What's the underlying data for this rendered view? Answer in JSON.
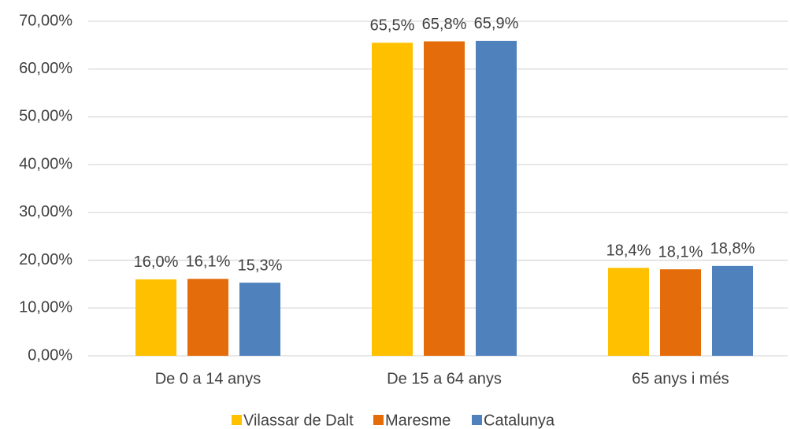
{
  "chart_data": {
    "type": "bar",
    "categories": [
      "De 0 a 14 anys",
      "De 15 a 64 anys",
      "65 anys i més"
    ],
    "series": [
      {
        "name": "Vilassar de Dalt",
        "color": "#FFC000",
        "values": [
          16.0,
          65.5,
          18.4
        ],
        "value_labels": [
          "16,0%",
          "65,5%",
          "18,4%"
        ]
      },
      {
        "name": "Maresme",
        "color": "#E46C0A",
        "values": [
          16.1,
          65.8,
          18.1
        ],
        "value_labels": [
          "16,1%",
          "65,8%",
          "18,1%"
        ]
      },
      {
        "name": "Catalunya",
        "color": "#4F81BD",
        "values": [
          15.3,
          65.9,
          18.8
        ],
        "value_labels": [
          "15,3%",
          "65,9%",
          "18,8%"
        ]
      }
    ],
    "ylim": [
      0,
      70
    ],
    "yticks": [
      {
        "value": 0,
        "label": "0,00%"
      },
      {
        "value": 10,
        "label": "10,00%"
      },
      {
        "value": 20,
        "label": "20,00%"
      },
      {
        "value": 30,
        "label": "30,00%"
      },
      {
        "value": 40,
        "label": "40,00%"
      },
      {
        "value": 50,
        "label": "50,00%"
      },
      {
        "value": 60,
        "label": "60,00%"
      },
      {
        "value": 70,
        "label": "70,00%"
      }
    ],
    "grid": true,
    "legend": "bottom"
  }
}
